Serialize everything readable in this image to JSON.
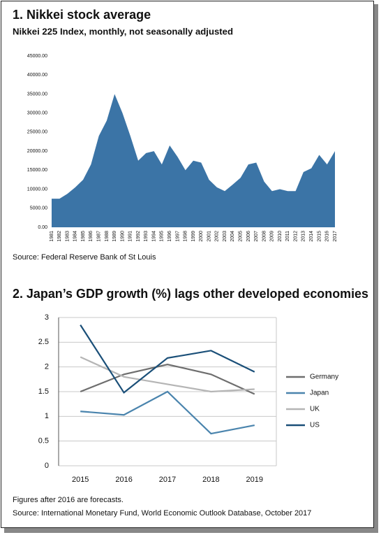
{
  "chart_data": [
    {
      "type": "area",
      "title": "1. Nikkei stock average",
      "subtitle": "Nikkei 225 Index, monthly, not seasonally adjusted",
      "source": "Source: Federal Reserve Bank of St Louis",
      "categories": [
        "1981",
        "1982",
        "1983",
        "1984",
        "1985",
        "1986",
        "1987",
        "1988",
        "1989",
        "1990",
        "1991",
        "1992",
        "1993",
        "1994",
        "1995",
        "1996",
        "1997",
        "1998",
        "1999",
        "2000",
        "2001",
        "2002",
        "2003",
        "2004",
        "2005",
        "2006",
        "2007",
        "2008",
        "2009",
        "2010",
        "2011",
        "2012",
        "2013",
        "2014",
        "2015",
        "2016",
        "2017"
      ],
      "values": [
        7500,
        7500,
        8800,
        10500,
        12500,
        16500,
        24000,
        28000,
        35000,
        30000,
        24000,
        17500,
        19500,
        20000,
        16500,
        21500,
        18500,
        15000,
        17500,
        17000,
        12500,
        10500,
        9500,
        11200,
        13000,
        16500,
        17000,
        12000,
        9500,
        10000,
        9500,
        9500,
        14500,
        15500,
        19000,
        16500,
        20000
      ],
      "color": "#3b74a6",
      "ylim": [
        0,
        45000
      ],
      "yticks": [
        {
          "value": 0,
          "label": "0.00"
        },
        {
          "value": 5000,
          "label": "5000.00"
        },
        {
          "value": 10000,
          "label": "10000.00"
        },
        {
          "value": 15000,
          "label": "15000.00"
        },
        {
          "value": 20000,
          "label": "20000.00"
        },
        {
          "value": 25000,
          "label": "25000.00"
        },
        {
          "value": 30000,
          "label": "30000.00"
        },
        {
          "value": 35000,
          "label": "35000.00"
        },
        {
          "value": 40000,
          "label": "40000.00"
        },
        {
          "value": 45000,
          "label": "45000.00"
        }
      ],
      "grid": false
    },
    {
      "type": "line",
      "title": "2. Japan’s GDP growth (%) lags other developed economies",
      "note": "Figures after 2016 are forecasts.",
      "source": "Source: International Monetary Fund, World Economic Outlook Database, October 2017",
      "categories": [
        "2015",
        "2016",
        "2017",
        "2018",
        "2019"
      ],
      "series": [
        {
          "name": "Germany",
          "color": "#6e6e6e",
          "values": [
            1.5,
            1.85,
            2.05,
            1.85,
            1.45
          ]
        },
        {
          "name": "Japan",
          "color": "#4a84ad",
          "values": [
            1.1,
            1.03,
            1.5,
            0.65,
            0.82
          ]
        },
        {
          "name": "UK",
          "color": "#b5b5b5",
          "values": [
            2.2,
            1.8,
            1.65,
            1.5,
            1.55
          ]
        },
        {
          "name": "US",
          "color": "#1a4f78",
          "values": [
            2.85,
            1.48,
            2.18,
            2.33,
            1.9
          ]
        }
      ],
      "ylim": [
        0,
        3
      ],
      "yticks": [
        0,
        0.5,
        1,
        1.5,
        2,
        2.5,
        3
      ],
      "grid": true,
      "legend": "right"
    }
  ]
}
